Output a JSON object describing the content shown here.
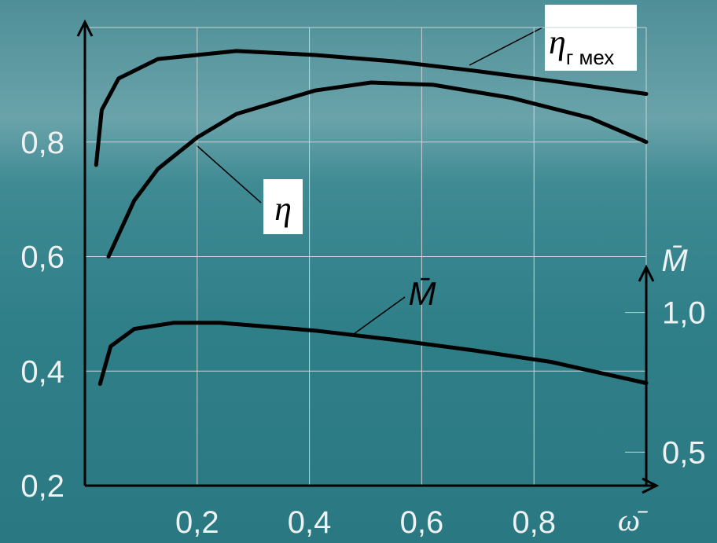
{
  "chart_data": {
    "type": "line",
    "xlabel": "ω̄",
    "y2label": "M̄",
    "xlim": [
      0,
      1.0
    ],
    "ylim": [
      0.2,
      1.0
    ],
    "y2lim": [
      0.38,
      2.02
    ],
    "xticks": [
      {
        "value": 0.2,
        "label": "0,2"
      },
      {
        "value": 0.4,
        "label": "0,4"
      },
      {
        "value": 0.6,
        "label": "0,6"
      },
      {
        "value": 0.8,
        "label": "0,8"
      }
    ],
    "yticks": [
      {
        "value": 0.2,
        "label": "0,2"
      },
      {
        "value": 0.4,
        "label": "0,4"
      },
      {
        "value": 0.6,
        "label": "0,6"
      },
      {
        "value": 0.8,
        "label": "0,8"
      }
    ],
    "y2ticks": [
      {
        "value": 0.5,
        "label": "0,5"
      },
      {
        "value": 1.0,
        "label": "1,0"
      }
    ],
    "grid": true,
    "series": [
      {
        "name": "η",
        "subscript": "г мех",
        "color": "#000000",
        "x": [
          0.02,
          0.03,
          0.06,
          0.13,
          0.27,
          0.41,
          0.55,
          0.69,
          0.83,
          1.0
        ],
        "values": [
          0.76,
          0.856,
          0.911,
          0.945,
          0.959,
          0.952,
          0.941,
          0.925,
          0.907,
          0.884
        ]
      },
      {
        "name": "η",
        "color": "#000000",
        "x": [
          0.042,
          0.088,
          0.13,
          0.2,
          0.27,
          0.41,
          0.51,
          0.62,
          0.76,
          0.9,
          1.0
        ],
        "values": [
          0.6,
          0.698,
          0.753,
          0.808,
          0.849,
          0.89,
          0.904,
          0.9,
          0.877,
          0.842,
          0.8
        ]
      },
      {
        "name": "M̄",
        "color": "#000000",
        "axis": "y2",
        "x": [
          0.027,
          0.046,
          0.088,
          0.158,
          0.24,
          0.41,
          0.55,
          0.69,
          0.83,
          1.0
        ],
        "values": [
          0.744,
          0.879,
          0.941,
          0.963,
          0.963,
          0.935,
          0.902,
          0.865,
          0.823,
          0.747
        ]
      }
    ]
  }
}
